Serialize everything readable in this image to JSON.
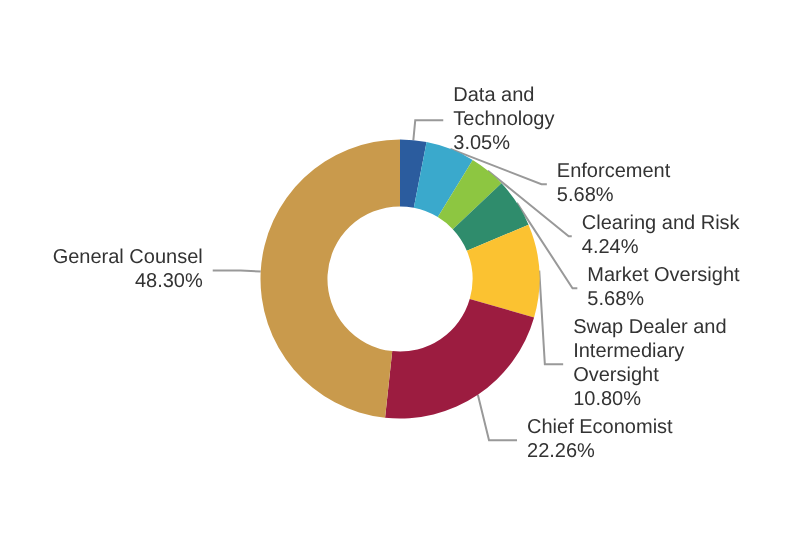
{
  "chart_data": {
    "type": "donut",
    "categories": [
      "Data and Technology",
      "Enforcement",
      "Clearing and Risk",
      "Market Oversight",
      "Swap Dealer and Intermediary Oversight",
      "Chief Economist",
      "General Counsel"
    ],
    "values": [
      3.05,
      5.68,
      4.24,
      5.68,
      10.8,
      22.26,
      48.3
    ],
    "value_labels": [
      "3.05%",
      "5.68%",
      "4.24%",
      "5.68%",
      "10.80%",
      "22.26%",
      "48.30%"
    ],
    "colors": [
      "#2b5c9e",
      "#3aa9cc",
      "#8dc641",
      "#2f8c6c",
      "#fbc231",
      "#9c1c40",
      "#c99a4c"
    ],
    "legend": false
  }
}
